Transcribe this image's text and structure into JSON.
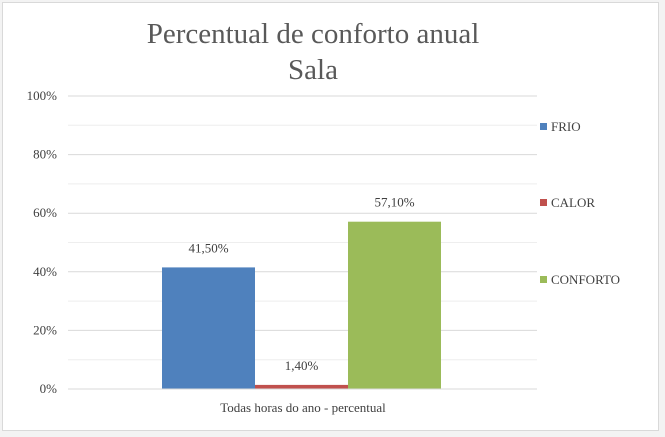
{
  "chart_data": {
    "type": "bar",
    "title": "Percentual de conforto anual",
    "subtitle": "Sala",
    "categories": [
      "Todas horas do ano - percentual"
    ],
    "series": [
      {
        "name": "FRIO",
        "values": [
          41.5
        ],
        "label": "41,50%",
        "color": "#4f81bd"
      },
      {
        "name": "CALOR",
        "values": [
          1.4
        ],
        "label": "1,40%",
        "color": "#c0504d"
      },
      {
        "name": "CONFORTO",
        "values": [
          57.1
        ],
        "label": "57,10%",
        "color": "#9bbb59"
      }
    ],
    "ylim": [
      0,
      100
    ],
    "yticks": [
      {
        "value": 0,
        "label": "0%"
      },
      {
        "value": 20,
        "label": "20%"
      },
      {
        "value": 40,
        "label": "40%"
      },
      {
        "value": 60,
        "label": "60%"
      },
      {
        "value": 80,
        "label": "80%"
      },
      {
        "value": 100,
        "label": "100%"
      }
    ],
    "grid": true,
    "legend_position": "right"
  }
}
